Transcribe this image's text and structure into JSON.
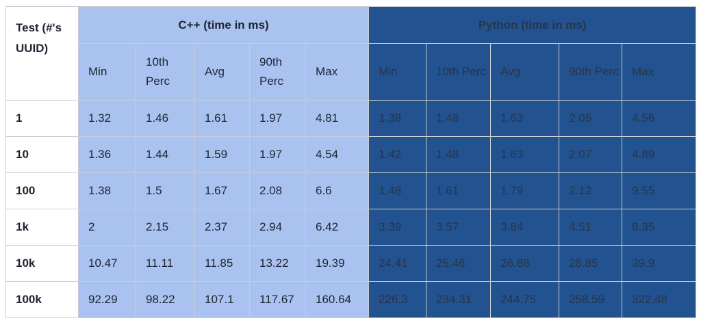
{
  "header": {
    "test_label": "Test (#'s UUID)",
    "cpp_group": "C++ (time in ms)",
    "python_group": "Python (time in ms)",
    "sub": [
      "Min",
      "10th Perc",
      "Avg",
      "90th Perc",
      "Max"
    ]
  },
  "rows": [
    {
      "test": "1",
      "cpp": [
        "1.32",
        "1.46",
        "1.61",
        "1.97",
        "4.81"
      ],
      "py": [
        "1.38",
        "1.48",
        "1.63",
        "2.05",
        "4.56"
      ]
    },
    {
      "test": "10",
      "cpp": [
        "1.36",
        "1.44",
        "1.59",
        "1.97",
        "4.54"
      ],
      "py": [
        "1.42",
        "1.48",
        "1.63",
        "2.07",
        "4.89"
      ]
    },
    {
      "test": "100",
      "cpp": [
        "1.38",
        "1.5",
        "1.67",
        "2.08",
        "6.6"
      ],
      "py": [
        "1.48",
        "1.61",
        "1.79",
        "2.12",
        "9.55"
      ]
    },
    {
      "test": "1k",
      "cpp": [
        "2",
        "2.15",
        "2.37",
        "2.94",
        "6.42"
      ],
      "py": [
        "3.39",
        "3.57",
        "3.84",
        "4.51",
        "8.35"
      ]
    },
    {
      "test": "10k",
      "cpp": [
        "10.47",
        "11.11",
        "11.85",
        "13.22",
        "19.39"
      ],
      "py": [
        "24.41",
        "25.46",
        "26.88",
        "28.85",
        "39.9"
      ]
    },
    {
      "test": "100k",
      "cpp": [
        "92.29",
        "98.22",
        "107.1",
        "117.67",
        "160.64"
      ],
      "py": [
        "226.3",
        "234.31",
        "244.75",
        "258.59",
        "322.48"
      ]
    }
  ],
  "colors": {
    "cpp_bg": "#a9c2f0",
    "python_bg": "#22528f",
    "border": "#c9cdd4"
  }
}
